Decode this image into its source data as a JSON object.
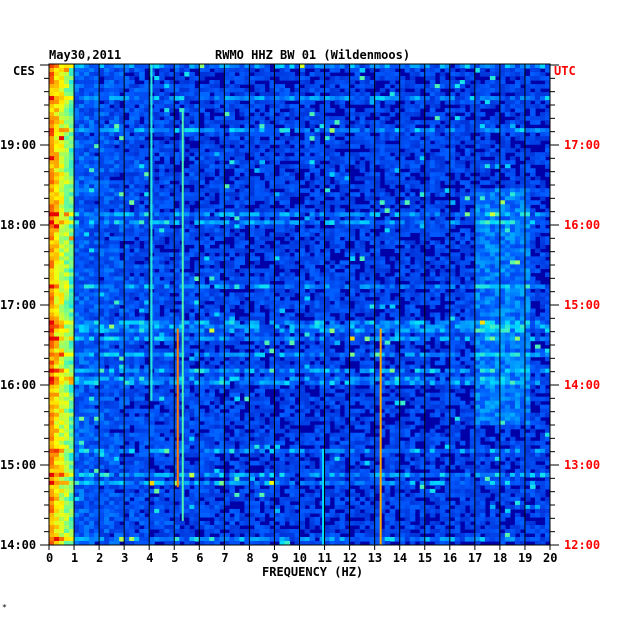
{
  "header": {
    "date": "May30,2011",
    "station": "RWMO HHZ BW 01 (Wildenmoos)"
  },
  "left_axis_label": "CES",
  "right_axis_label": "UTC",
  "footer_mark": "*",
  "colors": {
    "background": "#0000a8",
    "left_text": "#000000",
    "right_text": "#ff0000",
    "gridline": "#000000"
  },
  "chart_data": {
    "type": "heatmap",
    "title": "RWMO HHZ BW 01 (Wildenmoos)",
    "subtitle": "May30,2011",
    "xlabel": "FREQUENCY (HZ)",
    "xlim": [
      0,
      20
    ],
    "x_ticks": [
      "0",
      "1",
      "2",
      "3",
      "4",
      "5",
      "6",
      "7",
      "8",
      "9",
      "10",
      "11",
      "12",
      "13",
      "14",
      "15",
      "16",
      "17",
      "18",
      "19",
      "20"
    ],
    "y_left_label": "CES",
    "y_left_ticks": [
      "14:00",
      "15:00",
      "16:00",
      "17:00",
      "18:00",
      "19:00"
    ],
    "y_right_label": "UTC",
    "y_right_ticks": [
      "12:00",
      "13:00",
      "14:00",
      "15:00",
      "16:00",
      "17:00"
    ],
    "grid": true
  }
}
